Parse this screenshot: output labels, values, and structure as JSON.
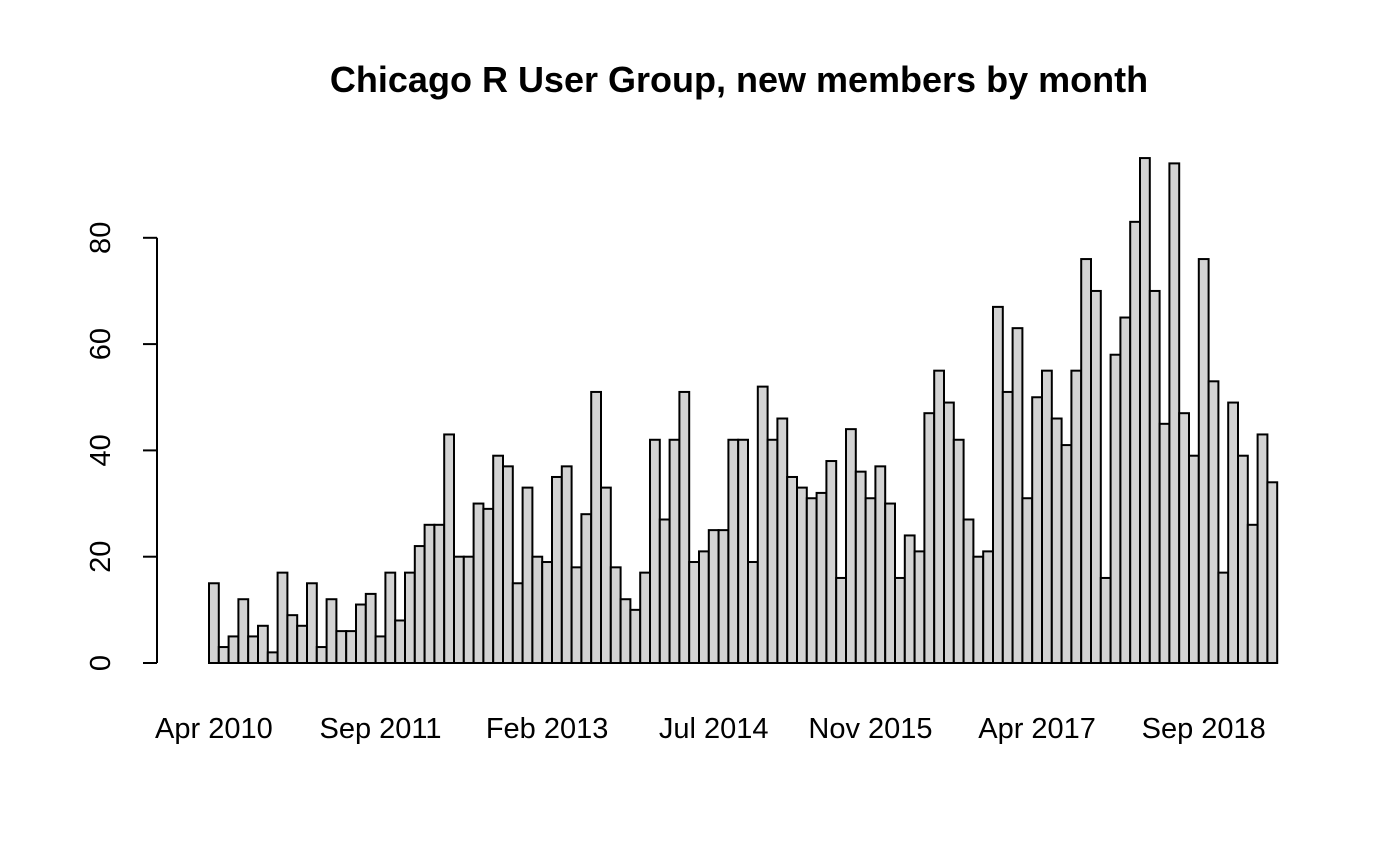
{
  "chart_data": {
    "type": "bar",
    "title": "Chicago R User Group, new members by month",
    "xlabel": "",
    "ylabel": "",
    "ylim": [
      0,
      100
    ],
    "yticks": [
      0,
      20,
      40,
      60,
      80
    ],
    "x_tick_labels": [
      {
        "label": "Apr 2010",
        "index": 0
      },
      {
        "label": "Sep 2011",
        "index": 17
      },
      {
        "label": "Feb 2013",
        "index": 34
      },
      {
        "label": "Jul 2014",
        "index": 51
      },
      {
        "label": "Nov 2015",
        "index": 67
      },
      {
        "label": "Apr 2017",
        "index": 84
      },
      {
        "label": "Sep 2018",
        "index": 101
      }
    ],
    "bar_fill": "#d3d3d3",
    "bar_stroke": "#000000",
    "grid": false,
    "values": [
      15,
      3,
      5,
      12,
      5,
      7,
      2,
      17,
      9,
      7,
      15,
      3,
      12,
      6,
      6,
      11,
      13,
      5,
      17,
      8,
      17,
      22,
      26,
      26,
      43,
      20,
      20,
      30,
      29,
      39,
      37,
      15,
      33,
      20,
      19,
      35,
      37,
      18,
      28,
      51,
      33,
      18,
      12,
      10,
      17,
      42,
      27,
      42,
      51,
      19,
      21,
      25,
      25,
      42,
      42,
      19,
      52,
      42,
      46,
      35,
      33,
      31,
      32,
      38,
      16,
      44,
      36,
      31,
      37,
      30,
      16,
      24,
      21,
      47,
      55,
      49,
      42,
      27,
      20,
      21,
      67,
      51,
      63,
      31,
      50,
      55,
      46,
      41,
      55,
      76,
      70,
      16,
      58,
      65,
      83,
      95,
      70,
      45,
      94,
      47,
      39,
      76,
      53,
      17,
      49,
      39,
      26,
      43,
      34
    ]
  }
}
